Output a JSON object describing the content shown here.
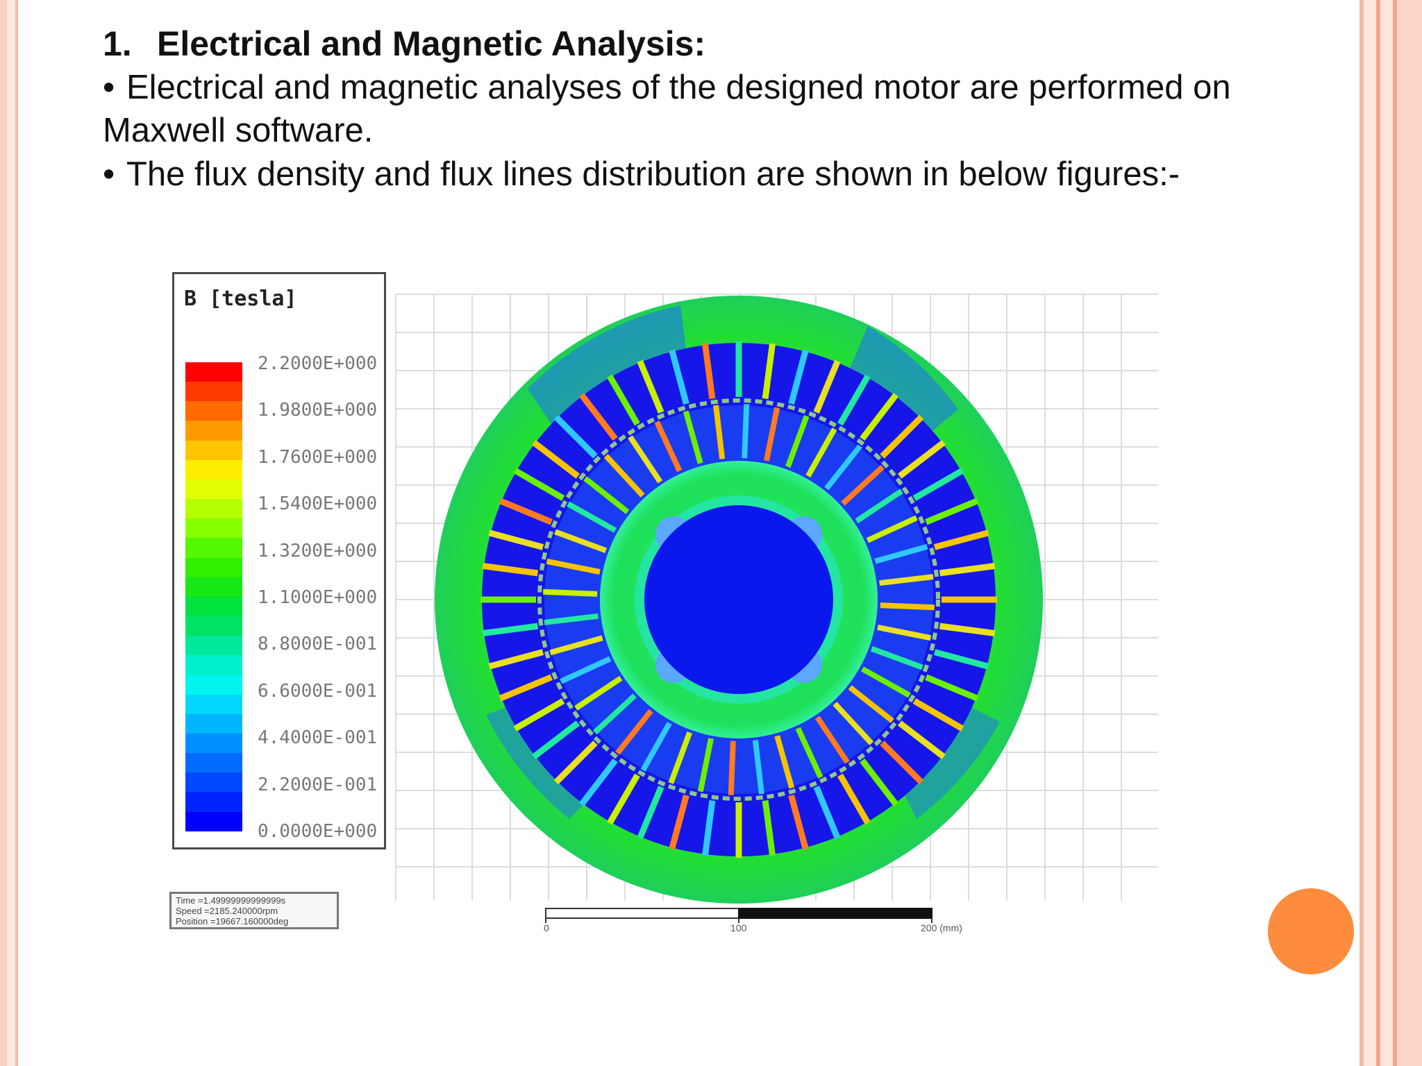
{
  "heading": {
    "number": "1.",
    "title": "Electrical and Magnetic Analysis:"
  },
  "bullets": [
    {
      "marker": "•",
      "text": "Electrical and magnetic analyses of the designed motor are performed on Maxwell software."
    },
    {
      "marker": "•",
      "text": "The flux density and flux lines distribution are shown in below figures:-"
    }
  ],
  "legend": {
    "title": "B [tesla]",
    "values": [
      "2.2000E+000",
      "1.9800E+000",
      "1.7600E+000",
      "1.5400E+000",
      "1.3200E+000",
      "1.1000E+000",
      "8.8000E-001",
      "6.6000E-001",
      "4.4000E-001",
      "2.2000E-001",
      "0.0000E+000"
    ],
    "colors": [
      "#ff0000",
      "#ff3a00",
      "#ff6a00",
      "#ff9900",
      "#ffc400",
      "#ffee00",
      "#e2ff00",
      "#b4ff00",
      "#86ff00",
      "#54f800",
      "#2ef000",
      "#18e816",
      "#00e23e",
      "#00e266",
      "#00e89a",
      "#00f0ce",
      "#00f5f0",
      "#00d8ff",
      "#00b4ff",
      "#0090ff",
      "#006cff",
      "#0048ff",
      "#0024ff",
      "#0000ff"
    ]
  },
  "info": {
    "time": "Time =1.49999999999999s",
    "speed": "Speed =2185.240000rpm",
    "position": "Position =19667.160000deg"
  },
  "scale": {
    "labels": [
      "0",
      "100",
      "200 (mm)"
    ]
  },
  "colors": {
    "stripe_light": "#fde7df",
    "stripe_mid": "#f8b9a4",
    "stripe_dark": "#f4a48a",
    "accent_dot": "#ff8c3c",
    "stator_yoke": "#22dd33",
    "slot": "#1a1aee",
    "shaft": "#0a18ee"
  }
}
